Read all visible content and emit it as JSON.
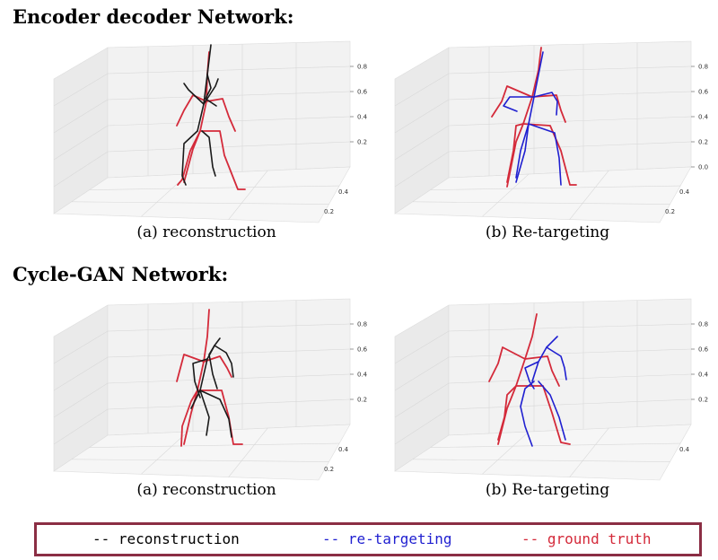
{
  "sections": [
    {
      "heading": "Encoder decoder Network:",
      "panels": [
        {
          "caption": "(a) reconstruction",
          "z_ticks": [
            "0.8",
            "0.6",
            "0.4",
            "0.2"
          ],
          "y_ticks": [
            "0.4",
            "0.2"
          ],
          "pred_color": "#1a1a1a"
        },
        {
          "caption": "(b) Re-targeting",
          "z_ticks": [
            "0.8",
            "0.6",
            "0.4",
            "0.2",
            "0.0"
          ],
          "y_ticks": [
            "0.4",
            "0.2"
          ],
          "pred_color": "#1f1fd0"
        }
      ]
    },
    {
      "heading": "Cycle-GAN Network:",
      "panels": [
        {
          "caption": "(a) reconstruction",
          "z_ticks": [
            "0.8",
            "0.6",
            "0.4",
            "0.2"
          ],
          "y_ticks": [
            "0.4",
            "0.2"
          ],
          "pred_color": "#1a1a1a"
        },
        {
          "caption": "(b) Re-targeting",
          "z_ticks": [
            "0.8",
            "0.6",
            "0.4",
            "0.2"
          ],
          "y_ticks": [
            "0.4"
          ],
          "pred_color": "#1f1fd0"
        }
      ]
    }
  ],
  "legend": [
    {
      "label": "-- reconstruction",
      "color": "#000000"
    },
    {
      "label": "-- re-targeting",
      "color": "#1f1fd0"
    },
    {
      "label": "-- ground truth",
      "color": "#d42a3a"
    }
  ],
  "colors": {
    "ground_truth": "#d42a3a",
    "frame": "#8b2e44"
  }
}
